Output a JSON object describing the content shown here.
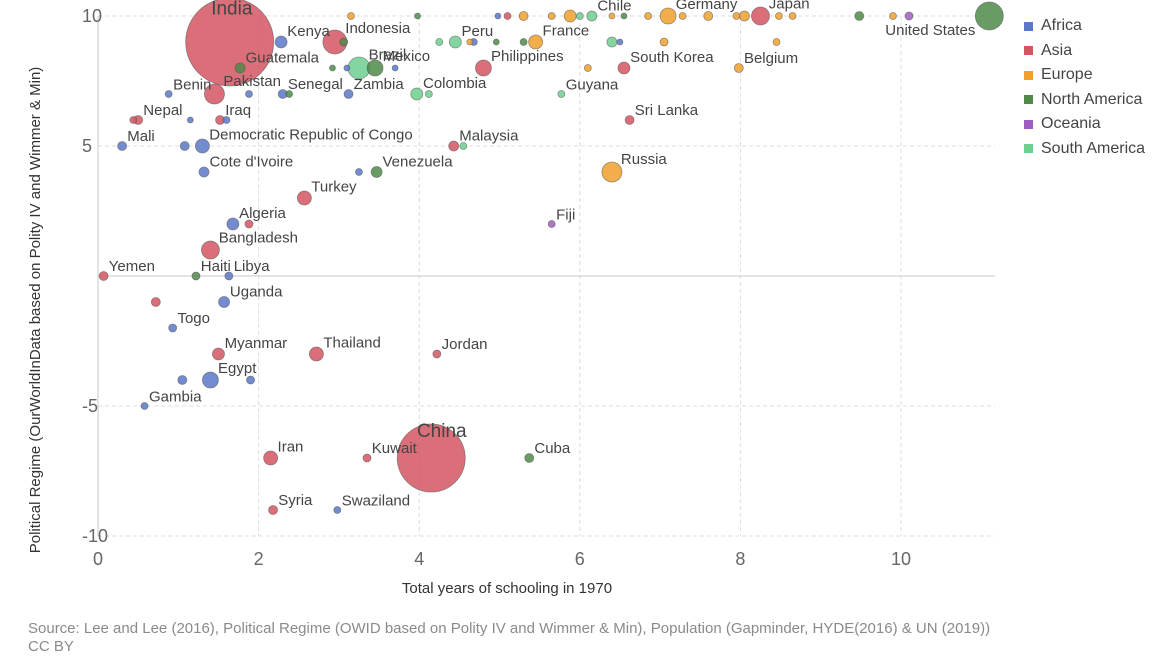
{
  "chart_data": {
    "type": "scatter",
    "xlabel": "Total years of schooling in 1970",
    "ylabel": "Political Regime (OurWorldInData based on Polity IV and Wimmer & Min)",
    "xlim": [
      0,
      11.2
    ],
    "ylim": [
      -10,
      10
    ],
    "x_ticks": [
      "0",
      "2",
      "4",
      "6",
      "8",
      "10"
    ],
    "y_ticks": [
      "10",
      "5",
      "-5",
      "-10"
    ],
    "grid": true,
    "legend_position": "top-right",
    "colors": {
      "Africa": "#5b78c8",
      "Asia": "#d45561",
      "Europe": "#f0a02a",
      "North America": "#4f8a49",
      "Oceania": "#a05dc0",
      "South America": "#6fcf8f"
    },
    "legend": [
      "Africa",
      "Asia",
      "Europe",
      "North America",
      "Oceania",
      "South America"
    ],
    "points": [
      {
        "label": "India",
        "region": "Asia",
        "x": 1.64,
        "y": 9,
        "size": 44
      },
      {
        "label": "China",
        "region": "Asia",
        "x": 4.15,
        "y": -7,
        "size": 34
      },
      {
        "label": "United States",
        "region": "North America",
        "x": 11.1,
        "y": 10,
        "size": 14
      },
      {
        "label": "Indonesia",
        "region": "Asia",
        "x": 2.95,
        "y": 9,
        "size": 12
      },
      {
        "label": "Brazil",
        "region": "South America",
        "x": 3.25,
        "y": 8,
        "size": 11
      },
      {
        "label": "Russia",
        "region": "Europe",
        "x": 6.4,
        "y": 4,
        "size": 10
      },
      {
        "label": "Japan",
        "region": "Asia",
        "x": 8.25,
        "y": 10,
        "size": 9
      },
      {
        "label": "Germany",
        "region": "Europe",
        "x": 7.1,
        "y": 10,
        "size": 8
      },
      {
        "label": "Bangladesh",
        "region": "Asia",
        "x": 1.4,
        "y": 1,
        "size": 9
      },
      {
        "label": "Pakistan",
        "region": "Asia",
        "x": 1.45,
        "y": 7,
        "size": 10
      },
      {
        "label": "Philippines",
        "region": "Asia",
        "x": 4.8,
        "y": 8,
        "size": 8
      },
      {
        "label": "Turkey",
        "region": "Asia",
        "x": 2.57,
        "y": 3,
        "size": 7
      },
      {
        "label": "Thailand",
        "region": "Asia",
        "x": 2.72,
        "y": -3,
        "size": 7
      },
      {
        "label": "Iran",
        "region": "Asia",
        "x": 2.15,
        "y": -7,
        "size": 7
      },
      {
        "label": "Egypt",
        "region": "Africa",
        "x": 1.4,
        "y": -4,
        "size": 8
      },
      {
        "label": "Democratic Republic of Congo",
        "region": "Africa",
        "x": 1.3,
        "y": 5,
        "size": 7
      },
      {
        "label": "Mexico",
        "region": "North America",
        "x": 3.45,
        "y": 8,
        "size": 8
      },
      {
        "label": "France",
        "region": "Europe",
        "x": 5.45,
        "y": 9,
        "size": 7
      },
      {
        "label": "Kenya",
        "region": "Africa",
        "x": 2.28,
        "y": 9,
        "size": 6
      },
      {
        "label": "Peru",
        "region": "South America",
        "x": 4.45,
        "y": 9,
        "size": 6
      },
      {
        "label": "Colombia",
        "region": "South America",
        "x": 3.97,
        "y": 7,
        "size": 6
      },
      {
        "label": "South Korea",
        "region": "Asia",
        "x": 6.55,
        "y": 8,
        "size": 6
      },
      {
        "label": "Myanmar",
        "region": "Asia",
        "x": 1.5,
        "y": -3,
        "size": 6
      },
      {
        "label": "Algeria",
        "region": "Africa",
        "x": 1.68,
        "y": 2,
        "size": 6
      },
      {
        "label": "Uganda",
        "region": "Africa",
        "x": 1.57,
        "y": -1,
        "size": 5.5
      },
      {
        "label": "Venezuela",
        "region": "North America",
        "x": 3.47,
        "y": 4,
        "size": 5.5
      },
      {
        "label": "Cote d'Ivoire",
        "region": "Africa",
        "x": 1.32,
        "y": 4,
        "size": 5
      },
      {
        "label": "Malaysia",
        "region": "Asia",
        "x": 4.43,
        "y": 5,
        "size": 5
      },
      {
        "label": "Chile",
        "region": "South America",
        "x": 6.15,
        "y": 10,
        "size": 5
      },
      {
        "label": "Guatemala",
        "region": "North America",
        "x": 1.77,
        "y": 8,
        "size": 5
      },
      {
        "label": "Iraq",
        "region": "Asia",
        "x": 1.52,
        "y": 6,
        "size": 4.5
      },
      {
        "label": "Senegal",
        "region": "Africa",
        "x": 2.3,
        "y": 7,
        "size": 4.5
      },
      {
        "label": "Zambia",
        "region": "Africa",
        "x": 3.12,
        "y": 7,
        "size": 4.5
      },
      {
        "label": "Nepal",
        "region": "Asia",
        "x": 0.5,
        "y": 6,
        "size": 4.5
      },
      {
        "label": "Mali",
        "region": "Africa",
        "x": 0.3,
        "y": 5,
        "size": 4.5
      },
      {
        "label": "Benin",
        "region": "Africa",
        "x": 0.88,
        "y": 7,
        "size": 3.5
      },
      {
        "label": "Yemen",
        "region": "Asia",
        "x": 0.07,
        "y": 0,
        "size": 4.5
      },
      {
        "label": "Haiti",
        "region": "North America",
        "x": 1.22,
        "y": 0,
        "size": 4
      },
      {
        "label": "Libya",
        "region": "Africa",
        "x": 1.63,
        "y": 0,
        "size": 4
      },
      {
        "label": "Togo",
        "region": "Africa",
        "x": 0.93,
        "y": -2,
        "size": 4
      },
      {
        "label": "Jordan",
        "region": "Asia",
        "x": 4.22,
        "y": -3,
        "size": 4
      },
      {
        "label": "Gambia",
        "region": "Africa",
        "x": 0.58,
        "y": -5,
        "size": 3.5
      },
      {
        "label": "Kuwait",
        "region": "Asia",
        "x": 3.35,
        "y": -7,
        "size": 4
      },
      {
        "label": "Cuba",
        "region": "North America",
        "x": 5.37,
        "y": -7,
        "size": 4.5
      },
      {
        "label": "Syria",
        "region": "Asia",
        "x": 2.18,
        "y": -9,
        "size": 4.5
      },
      {
        "label": "Swaziland",
        "region": "Africa",
        "x": 2.98,
        "y": -9,
        "size": 3.5
      },
      {
        "label": "Guyana",
        "region": "South America",
        "x": 5.77,
        "y": 7,
        "size": 3.5
      },
      {
        "label": "Sri Lanka",
        "region": "Asia",
        "x": 6.62,
        "y": 6,
        "size": 4.5
      },
      {
        "label": "Belgium",
        "region": "Europe",
        "x": 7.98,
        "y": 8,
        "size": 4.5
      },
      {
        "label": "Fiji",
        "region": "Oceania",
        "x": 5.65,
        "y": 2,
        "size": 3.5
      },
      {
        "label": "",
        "region": "Africa",
        "x": 1.08,
        "y": 5,
        "size": 4.5
      },
      {
        "label": "",
        "region": "Africa",
        "x": 1.05,
        "y": -4,
        "size": 4.5
      },
      {
        "label": "",
        "region": "Africa",
        "x": 1.9,
        "y": -4,
        "size": 4
      },
      {
        "label": "",
        "region": "Asia",
        "x": 0.72,
        "y": -1,
        "size": 4.5
      },
      {
        "label": "",
        "region": "Asia",
        "x": 1.88,
        "y": 2,
        "size": 4
      },
      {
        "label": "",
        "region": "Asia",
        "x": 0.44,
        "y": 6,
        "size": 3.5
      },
      {
        "label": "",
        "region": "Africa",
        "x": 1.6,
        "y": 6,
        "size": 3.5
      },
      {
        "label": "",
        "region": "Africa",
        "x": 1.15,
        "y": 6,
        "size": 3
      },
      {
        "label": "",
        "region": "Africa",
        "x": 1.88,
        "y": 7,
        "size": 3.5
      },
      {
        "label": "",
        "region": "Africa",
        "x": 3.25,
        "y": 4,
        "size": 3.5
      },
      {
        "label": "",
        "region": "North America",
        "x": 2.38,
        "y": 7,
        "size": 3.5
      },
      {
        "label": "",
        "region": "South America",
        "x": 4.12,
        "y": 7,
        "size": 3.5
      },
      {
        "label": "",
        "region": "South America",
        "x": 4.55,
        "y": 5,
        "size": 3.5
      },
      {
        "label": "",
        "region": "Africa",
        "x": 3.7,
        "y": 8,
        "size": 3
      },
      {
        "label": "",
        "region": "Africa",
        "x": 3.1,
        "y": 8,
        "size": 3
      },
      {
        "label": "",
        "region": "North America",
        "x": 2.92,
        "y": 8,
        "size": 3
      },
      {
        "label": "",
        "region": "Europe",
        "x": 6.1,
        "y": 8,
        "size": 3.5
      },
      {
        "label": "",
        "region": "North America",
        "x": 3.06,
        "y": 9,
        "size": 4
      },
      {
        "label": "",
        "region": "South America",
        "x": 4.25,
        "y": 9,
        "size": 3.5
      },
      {
        "label": "",
        "region": "Africa",
        "x": 4.68,
        "y": 9,
        "size": 3.5
      },
      {
        "label": "",
        "region": "Europe",
        "x": 4.63,
        "y": 9,
        "size": 3
      },
      {
        "label": "",
        "region": "North America",
        "x": 4.96,
        "y": 9,
        "size": 3
      },
      {
        "label": "",
        "region": "North America",
        "x": 5.3,
        "y": 9,
        "size": 3.5
      },
      {
        "label": "",
        "region": "South America",
        "x": 6.4,
        "y": 9,
        "size": 5
      },
      {
        "label": "",
        "region": "Africa",
        "x": 6.5,
        "y": 9,
        "size": 3
      },
      {
        "label": "",
        "region": "Europe",
        "x": 7.05,
        "y": 9,
        "size": 4
      },
      {
        "label": "",
        "region": "Europe",
        "x": 8.45,
        "y": 9,
        "size": 3.5
      },
      {
        "label": "",
        "region": "Europe",
        "x": 3.15,
        "y": 10,
        "size": 3.5
      },
      {
        "label": "",
        "region": "North America",
        "x": 3.98,
        "y": 10,
        "size": 3
      },
      {
        "label": "",
        "region": "Africa",
        "x": 4.98,
        "y": 10,
        "size": 3
      },
      {
        "label": "",
        "region": "Asia",
        "x": 5.1,
        "y": 10,
        "size": 3.5
      },
      {
        "label": "",
        "region": "Europe",
        "x": 5.3,
        "y": 10,
        "size": 4.5
      },
      {
        "label": "",
        "region": "Europe",
        "x": 5.65,
        "y": 10,
        "size": 3.5
      },
      {
        "label": "",
        "region": "Europe",
        "x": 5.88,
        "y": 10,
        "size": 6
      },
      {
        "label": "",
        "region": "South America",
        "x": 6.0,
        "y": 10,
        "size": 3.5
      },
      {
        "label": "",
        "region": "Europe",
        "x": 6.4,
        "y": 10,
        "size": 3
      },
      {
        "label": "",
        "region": "North America",
        "x": 6.55,
        "y": 10,
        "size": 3
      },
      {
        "label": "",
        "region": "Europe",
        "x": 6.85,
        "y": 10,
        "size": 3.5
      },
      {
        "label": "",
        "region": "Europe",
        "x": 7.28,
        "y": 10,
        "size": 3.5
      },
      {
        "label": "",
        "region": "Europe",
        "x": 7.6,
        "y": 10,
        "size": 4.5
      },
      {
        "label": "",
        "region": "Europe",
        "x": 7.95,
        "y": 10,
        "size": 3.5
      },
      {
        "label": "",
        "region": "Europe",
        "x": 8.05,
        "y": 10,
        "size": 5
      },
      {
        "label": "",
        "region": "Europe",
        "x": 8.48,
        "y": 10,
        "size": 3.5
      },
      {
        "label": "",
        "region": "Europe",
        "x": 8.65,
        "y": 10,
        "size": 3.5
      },
      {
        "label": "",
        "region": "North America",
        "x": 9.48,
        "y": 10,
        "size": 4.5
      },
      {
        "label": "",
        "region": "Europe",
        "x": 9.9,
        "y": 10,
        "size": 3.5
      },
      {
        "label": "",
        "region": "Oceania",
        "x": 10.1,
        "y": 10,
        "size": 4
      }
    ]
  },
  "source": "Source: Lee and Lee (2016), Political Regime (OWID based on Polity IV and Wimmer & Min), Population (Gapminder, HYDE(2016) & UN (2019))",
  "license": "CC BY"
}
